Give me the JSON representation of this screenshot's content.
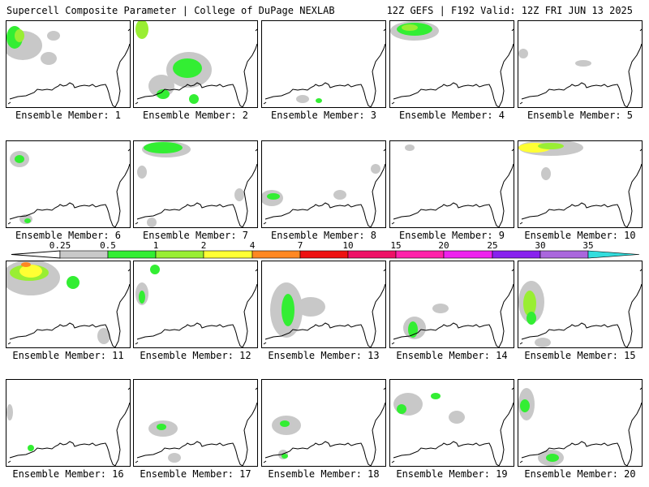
{
  "header": {
    "title_left": "Supercell Composite Parameter | College of DuPage NEXLAB",
    "title_right": "12Z GEFS | F192 Valid: 12Z FRI JUN 13 2025"
  },
  "legend": {
    "ticks": [
      "0.25",
      "0.5",
      "1",
      "2",
      "4",
      "7",
      "10",
      "15",
      "20",
      "25",
      "30",
      "35"
    ],
    "colors": [
      "#c8c8c8",
      "#33ee33",
      "#99ee33",
      "#ffff33",
      "#ff8822",
      "#ee1111",
      "#ee1166",
      "#ff22aa",
      "#ee22ee",
      "#8822ee",
      "#aa66dd",
      "#33dddd"
    ]
  },
  "members": [
    {
      "label": "Ensemble Member: 1"
    },
    {
      "label": "Ensemble Member: 2"
    },
    {
      "label": "Ensemble Member: 3"
    },
    {
      "label": "Ensemble Member: 4"
    },
    {
      "label": "Ensemble Member: 5"
    },
    {
      "label": "Ensemble Member: 6"
    },
    {
      "label": "Ensemble Member: 7"
    },
    {
      "label": "Ensemble Member: 8"
    },
    {
      "label": "Ensemble Member: 9"
    },
    {
      "label": "Ensemble Member: 10"
    },
    {
      "label": "Ensemble Member: 11"
    },
    {
      "label": "Ensemble Member: 12"
    },
    {
      "label": "Ensemble Member: 13"
    },
    {
      "label": "Ensemble Member: 14"
    },
    {
      "label": "Ensemble Member: 15"
    },
    {
      "label": "Ensemble Member: 16"
    },
    {
      "label": "Ensemble Member: 17"
    },
    {
      "label": "Ensemble Member: 18"
    },
    {
      "label": "Ensemble Member: 19"
    },
    {
      "label": "Ensemble Member: 20"
    }
  ]
}
